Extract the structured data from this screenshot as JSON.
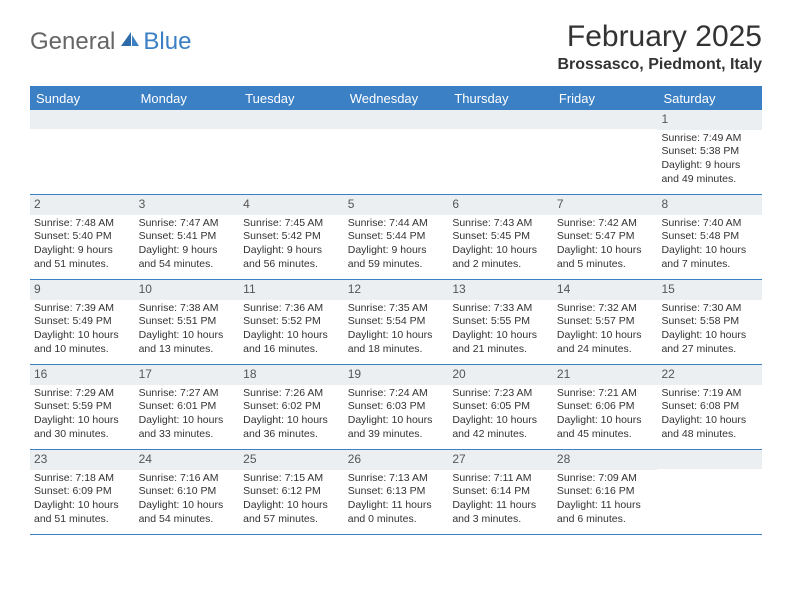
{
  "brand": {
    "general": "General",
    "blue": "Blue"
  },
  "title": "February 2025",
  "location": "Brossasco, Piedmont, Italy",
  "header_bg": "#3b7fc4",
  "daynum_bg": "#eceff1",
  "weekdays": [
    "Sunday",
    "Monday",
    "Tuesday",
    "Wednesday",
    "Thursday",
    "Friday",
    "Saturday"
  ],
  "weeks": [
    [
      {
        "n": "",
        "sr": "",
        "ss": "",
        "dl": ""
      },
      {
        "n": "",
        "sr": "",
        "ss": "",
        "dl": ""
      },
      {
        "n": "",
        "sr": "",
        "ss": "",
        "dl": ""
      },
      {
        "n": "",
        "sr": "",
        "ss": "",
        "dl": ""
      },
      {
        "n": "",
        "sr": "",
        "ss": "",
        "dl": ""
      },
      {
        "n": "",
        "sr": "",
        "ss": "",
        "dl": ""
      },
      {
        "n": "1",
        "sr": "Sunrise: 7:49 AM",
        "ss": "Sunset: 5:38 PM",
        "dl": "Daylight: 9 hours and 49 minutes."
      }
    ],
    [
      {
        "n": "2",
        "sr": "Sunrise: 7:48 AM",
        "ss": "Sunset: 5:40 PM",
        "dl": "Daylight: 9 hours and 51 minutes."
      },
      {
        "n": "3",
        "sr": "Sunrise: 7:47 AM",
        "ss": "Sunset: 5:41 PM",
        "dl": "Daylight: 9 hours and 54 minutes."
      },
      {
        "n": "4",
        "sr": "Sunrise: 7:45 AM",
        "ss": "Sunset: 5:42 PM",
        "dl": "Daylight: 9 hours and 56 minutes."
      },
      {
        "n": "5",
        "sr": "Sunrise: 7:44 AM",
        "ss": "Sunset: 5:44 PM",
        "dl": "Daylight: 9 hours and 59 minutes."
      },
      {
        "n": "6",
        "sr": "Sunrise: 7:43 AM",
        "ss": "Sunset: 5:45 PM",
        "dl": "Daylight: 10 hours and 2 minutes."
      },
      {
        "n": "7",
        "sr": "Sunrise: 7:42 AM",
        "ss": "Sunset: 5:47 PM",
        "dl": "Daylight: 10 hours and 5 minutes."
      },
      {
        "n": "8",
        "sr": "Sunrise: 7:40 AM",
        "ss": "Sunset: 5:48 PM",
        "dl": "Daylight: 10 hours and 7 minutes."
      }
    ],
    [
      {
        "n": "9",
        "sr": "Sunrise: 7:39 AM",
        "ss": "Sunset: 5:49 PM",
        "dl": "Daylight: 10 hours and 10 minutes."
      },
      {
        "n": "10",
        "sr": "Sunrise: 7:38 AM",
        "ss": "Sunset: 5:51 PM",
        "dl": "Daylight: 10 hours and 13 minutes."
      },
      {
        "n": "11",
        "sr": "Sunrise: 7:36 AM",
        "ss": "Sunset: 5:52 PM",
        "dl": "Daylight: 10 hours and 16 minutes."
      },
      {
        "n": "12",
        "sr": "Sunrise: 7:35 AM",
        "ss": "Sunset: 5:54 PM",
        "dl": "Daylight: 10 hours and 18 minutes."
      },
      {
        "n": "13",
        "sr": "Sunrise: 7:33 AM",
        "ss": "Sunset: 5:55 PM",
        "dl": "Daylight: 10 hours and 21 minutes."
      },
      {
        "n": "14",
        "sr": "Sunrise: 7:32 AM",
        "ss": "Sunset: 5:57 PM",
        "dl": "Daylight: 10 hours and 24 minutes."
      },
      {
        "n": "15",
        "sr": "Sunrise: 7:30 AM",
        "ss": "Sunset: 5:58 PM",
        "dl": "Daylight: 10 hours and 27 minutes."
      }
    ],
    [
      {
        "n": "16",
        "sr": "Sunrise: 7:29 AM",
        "ss": "Sunset: 5:59 PM",
        "dl": "Daylight: 10 hours and 30 minutes."
      },
      {
        "n": "17",
        "sr": "Sunrise: 7:27 AM",
        "ss": "Sunset: 6:01 PM",
        "dl": "Daylight: 10 hours and 33 minutes."
      },
      {
        "n": "18",
        "sr": "Sunrise: 7:26 AM",
        "ss": "Sunset: 6:02 PM",
        "dl": "Daylight: 10 hours and 36 minutes."
      },
      {
        "n": "19",
        "sr": "Sunrise: 7:24 AM",
        "ss": "Sunset: 6:03 PM",
        "dl": "Daylight: 10 hours and 39 minutes."
      },
      {
        "n": "20",
        "sr": "Sunrise: 7:23 AM",
        "ss": "Sunset: 6:05 PM",
        "dl": "Daylight: 10 hours and 42 minutes."
      },
      {
        "n": "21",
        "sr": "Sunrise: 7:21 AM",
        "ss": "Sunset: 6:06 PM",
        "dl": "Daylight: 10 hours and 45 minutes."
      },
      {
        "n": "22",
        "sr": "Sunrise: 7:19 AM",
        "ss": "Sunset: 6:08 PM",
        "dl": "Daylight: 10 hours and 48 minutes."
      }
    ],
    [
      {
        "n": "23",
        "sr": "Sunrise: 7:18 AM",
        "ss": "Sunset: 6:09 PM",
        "dl": "Daylight: 10 hours and 51 minutes."
      },
      {
        "n": "24",
        "sr": "Sunrise: 7:16 AM",
        "ss": "Sunset: 6:10 PM",
        "dl": "Daylight: 10 hours and 54 minutes."
      },
      {
        "n": "25",
        "sr": "Sunrise: 7:15 AM",
        "ss": "Sunset: 6:12 PM",
        "dl": "Daylight: 10 hours and 57 minutes."
      },
      {
        "n": "26",
        "sr": "Sunrise: 7:13 AM",
        "ss": "Sunset: 6:13 PM",
        "dl": "Daylight: 11 hours and 0 minutes."
      },
      {
        "n": "27",
        "sr": "Sunrise: 7:11 AM",
        "ss": "Sunset: 6:14 PM",
        "dl": "Daylight: 11 hours and 3 minutes."
      },
      {
        "n": "28",
        "sr": "Sunrise: 7:09 AM",
        "ss": "Sunset: 6:16 PM",
        "dl": "Daylight: 11 hours and 6 minutes."
      },
      {
        "n": "",
        "sr": "",
        "ss": "",
        "dl": ""
      }
    ]
  ]
}
